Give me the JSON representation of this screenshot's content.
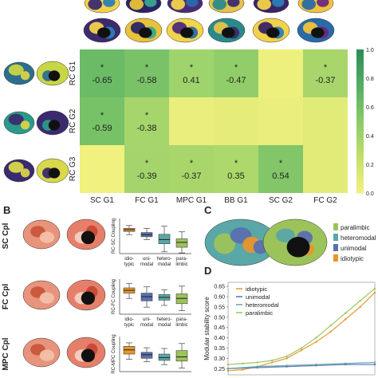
{
  "panel_labels": {
    "b": "B",
    "c": "C",
    "d": "D"
  },
  "chart_data": [
    {
      "type": "heatmap",
      "rows": [
        "RC G1",
        "RC G2",
        "RC G3"
      ],
      "columns": [
        "SC G1",
        "FC G1",
        "MPC G1",
        "BB G1",
        "SC G2",
        "FC G2"
      ],
      "values": [
        [
          -0.65,
          -0.58,
          0.41,
          -0.47,
          null,
          -0.37
        ],
        [
          -0.59,
          -0.38,
          null,
          null,
          null,
          null
        ],
        [
          null,
          -0.39,
          -0.37,
          0.35,
          0.54,
          null
        ]
      ],
      "fill_values": [
        [
          0.65,
          0.58,
          0.41,
          0.47,
          0.03,
          0.37
        ],
        [
          0.59,
          0.38,
          0.05,
          0.08,
          0.05,
          0.1
        ],
        [
          0.02,
          0.39,
          0.37,
          0.35,
          0.54,
          0.1
        ]
      ],
      "stars": [
        [
          true,
          true,
          true,
          true,
          false,
          true
        ],
        [
          true,
          true,
          false,
          false,
          false,
          false
        ],
        [
          false,
          true,
          true,
          true,
          true,
          false
        ]
      ],
      "colorbar": {
        "ticks": [
          "0.0",
          "0.2",
          "0.4",
          "0.6",
          "0.8",
          "1.0"
        ],
        "range": [
          0,
          1
        ],
        "colors": [
          "#f4f280",
          "#c4e06c",
          "#8acb6a",
          "#55ae63",
          "#2f8e58"
        ]
      }
    },
    {
      "type": "box",
      "ylabel": "RC-SC Coupling",
      "categories": [
        "idio-\ntypic",
        "uni-\nmodal",
        "hetero-\nmodal",
        "para-\nlimbic"
      ],
      "colors": [
        "#e8952c",
        "#5a6fb0",
        "#5aa7a7",
        "#9cc35a"
      ],
      "boxes": [
        {
          "q1": 0.63,
          "med": 0.68,
          "q3": 0.72,
          "lo": 0.54,
          "hi": 0.8
        },
        {
          "q1": 0.48,
          "med": 0.54,
          "q3": 0.6,
          "lo": 0.4,
          "hi": 0.72
        },
        {
          "q1": 0.28,
          "med": 0.4,
          "q3": 0.55,
          "lo": 0.05,
          "hi": 0.78
        },
        {
          "q1": 0.18,
          "med": 0.32,
          "q3": 0.42,
          "lo": 0.02,
          "hi": 0.62
        }
      ],
      "row_label": "SC Cpl"
    },
    {
      "type": "box",
      "ylabel": "RC-FC Coupling",
      "categories": [
        "idio-\ntypic",
        "uni-\nmodal",
        "hetero-\nmodal",
        "para-\nlimbic"
      ],
      "colors": [
        "#e8952c",
        "#5a6fb0",
        "#5aa7a7",
        "#9cc35a"
      ],
      "boxes": [
        {
          "q1": 0.6,
          "med": 0.68,
          "q3": 0.75,
          "lo": 0.45,
          "hi": 0.88
        },
        {
          "q1": 0.38,
          "med": 0.5,
          "q3": 0.6,
          "lo": 0.2,
          "hi": 0.78
        },
        {
          "q1": 0.4,
          "med": 0.48,
          "q3": 0.56,
          "lo": 0.25,
          "hi": 0.7
        },
        {
          "q1": 0.3,
          "med": 0.45,
          "q3": 0.58,
          "lo": 0.1,
          "hi": 0.8
        }
      ],
      "row_label": "FC Cpl"
    },
    {
      "type": "box",
      "ylabel": "RC-MPC Coupling",
      "categories": [],
      "colors": [
        "#e8952c",
        "#5a6fb0",
        "#5aa7a7",
        "#9cc35a"
      ],
      "boxes": [
        {
          "q1": 0.5,
          "med": 0.62,
          "q3": 0.72,
          "lo": 0.35,
          "hi": 0.82
        },
        {
          "q1": 0.38,
          "med": 0.48,
          "q3": 0.55,
          "lo": 0.28,
          "hi": 0.68
        },
        {
          "q1": 0.32,
          "med": 0.4,
          "q3": 0.5,
          "lo": 0.2,
          "hi": 0.66
        },
        {
          "q1": 0.3,
          "med": 0.42,
          "q3": 0.6,
          "lo": 0.1,
          "hi": 0.8
        }
      ],
      "row_label": "MPC Cpl"
    },
    {
      "type": "scatter",
      "ylabel": "Modular stability score",
      "y_ticks": [
        "0.25",
        "0.30",
        "0.35",
        "0.40",
        "0.45",
        "0.50",
        "0.55",
        "0.60",
        "0.65"
      ],
      "ylim": [
        0.22,
        0.67
      ],
      "series": [
        {
          "name": "idiotypic",
          "color": "#e8952c",
          "x": [
            0,
            0.1,
            0.2,
            0.3,
            0.4,
            0.5,
            0.6,
            0.7,
            0.8,
            0.9,
            1.0
          ],
          "y": [
            0.24,
            0.245,
            0.26,
            0.28,
            0.3,
            0.34,
            0.38,
            0.43,
            0.49,
            0.55,
            0.62
          ]
        },
        {
          "name": "unimodal",
          "color": "#5a6fb0",
          "x": [
            0,
            0.2,
            0.4,
            0.6,
            0.8,
            1.0
          ],
          "y": [
            0.25,
            0.255,
            0.26,
            0.265,
            0.27,
            0.27
          ]
        },
        {
          "name": "heteromodal",
          "color": "#5aa7a7",
          "x": [
            0,
            0.2,
            0.4,
            0.6,
            0.8,
            1.0
          ],
          "y": [
            0.25,
            0.26,
            0.265,
            0.27,
            0.275,
            0.28
          ]
        },
        {
          "name": "paralimbic",
          "color": "#9cc35a",
          "x": [
            0,
            0.1,
            0.2,
            0.3,
            0.4,
            0.5,
            0.6,
            0.7,
            0.8,
            0.9,
            1.0
          ],
          "y": [
            0.27,
            0.275,
            0.28,
            0.29,
            0.31,
            0.35,
            0.4,
            0.46,
            0.52,
            0.58,
            0.64
          ]
        }
      ]
    }
  ],
  "legend_c": {
    "items": [
      {
        "label": "paralimbic",
        "color": "#9cc35a"
      },
      {
        "label": "heteromodal",
        "color": "#5aa7a7"
      },
      {
        "label": "unimodal",
        "color": "#5a6fb0"
      },
      {
        "label": "idiotypic",
        "color": "#e8952c"
      }
    ]
  }
}
